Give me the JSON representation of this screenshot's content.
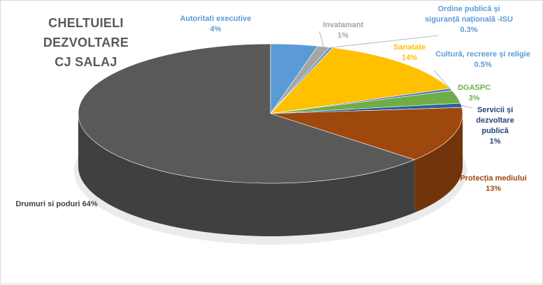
{
  "chart_data": {
    "type": "pie",
    "title_lines": [
      "CHELTUIELI  DEZVOLTARE",
      "CJ SALAJ"
    ],
    "slices": [
      {
        "name": "Autoritati executive",
        "value": 4,
        "label_lines": [
          "Autoritati executive",
          "4%"
        ],
        "color": "#5b9bd5",
        "label_color": "#5b9bd5"
      },
      {
        "name": "Invatamant",
        "value": 1,
        "label_lines": [
          "Invatamant",
          "1%"
        ],
        "color": "#a5a5a5",
        "label_color": "#a5a5a5"
      },
      {
        "name": "Ordine publică și siguranță națională -ISU",
        "value": 0.3,
        "label_lines": [
          "Ordine publică  și",
          "siguranță  națională  -ISU",
          "0.3%"
        ],
        "color": "#5b9bd5",
        "label_color": "#5b9bd5"
      },
      {
        "name": "Sanatate",
        "value": 14,
        "label_lines": [
          "Sanatate",
          "14%"
        ],
        "color": "#ffc000",
        "label_color": "#ffc000"
      },
      {
        "name": "Cultură, recreere și religie",
        "value": 0.5,
        "label_lines": [
          "Cultură,  recreere și religie",
          "0.5%"
        ],
        "color": "#4472c4",
        "label_color": "#5b9bd5"
      },
      {
        "name": "DGASPC",
        "value": 3,
        "label_lines": [
          "DGASPC",
          "3%"
        ],
        "color": "#70ad47",
        "label_color": "#70ad47"
      },
      {
        "name": "Servicii și dezvoltare publică",
        "value": 1,
        "label_lines": [
          "Servicii și",
          "dezvoltare",
          "publică",
          "1%"
        ],
        "color": "#2e5f9e",
        "label_color": "#264478"
      },
      {
        "name": "Protecția mediului",
        "value": 13,
        "label_lines": [
          "Protecția mediului",
          "13%"
        ],
        "color": "#9e480e",
        "label_color": "#9e480e"
      },
      {
        "name": "Drumuri si poduri",
        "value": 64,
        "label_lines": [
          "Drumuri si poduri 64%"
        ],
        "color": "#595959",
        "label_color": "#404040"
      }
    ],
    "legend": "none",
    "style": "3d-pie"
  }
}
